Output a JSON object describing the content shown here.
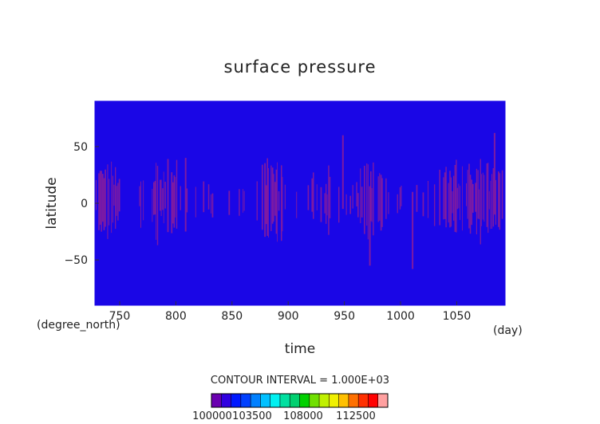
{
  "chart_data": {
    "type": "heatmap",
    "title": "surface pressure",
    "xlabel": "time",
    "x_unit": "(day)",
    "ylabel": "latitude",
    "y_unit": "(degree_north)",
    "xlim": [
      728,
      1093
    ],
    "ylim": [
      -90,
      90
    ],
    "x_ticks": [
      750,
      800,
      850,
      900,
      950,
      1000,
      1050
    ],
    "y_ticks": [
      -50,
      0,
      50
    ],
    "x_tick_labels": [
      "750",
      "800",
      "850",
      "900",
      "950",
      "1000",
      "1050"
    ],
    "y_tick_labels": [
      "−50",
      "0",
      "50"
    ],
    "background_level_color": "#1a06e6",
    "anomaly_color": "#7d1aa3",
    "contour_interval_text": "CONTOUR INTERVAL = 1.000E+03",
    "colorbar": {
      "colors": [
        "#6a00b0",
        "#3000e0",
        "#0018ff",
        "#0040ff",
        "#0080ff",
        "#00c0ff",
        "#00f0f0",
        "#00e0a0",
        "#00d070",
        "#00d000",
        "#70e000",
        "#c0f000",
        "#f0f000",
        "#ffc000",
        "#ff7000",
        "#ff3000",
        "#ff0000",
        "#ffa0a0"
      ],
      "tick_labels": [
        "100000",
        "103500",
        "108000",
        "112500"
      ]
    }
  }
}
